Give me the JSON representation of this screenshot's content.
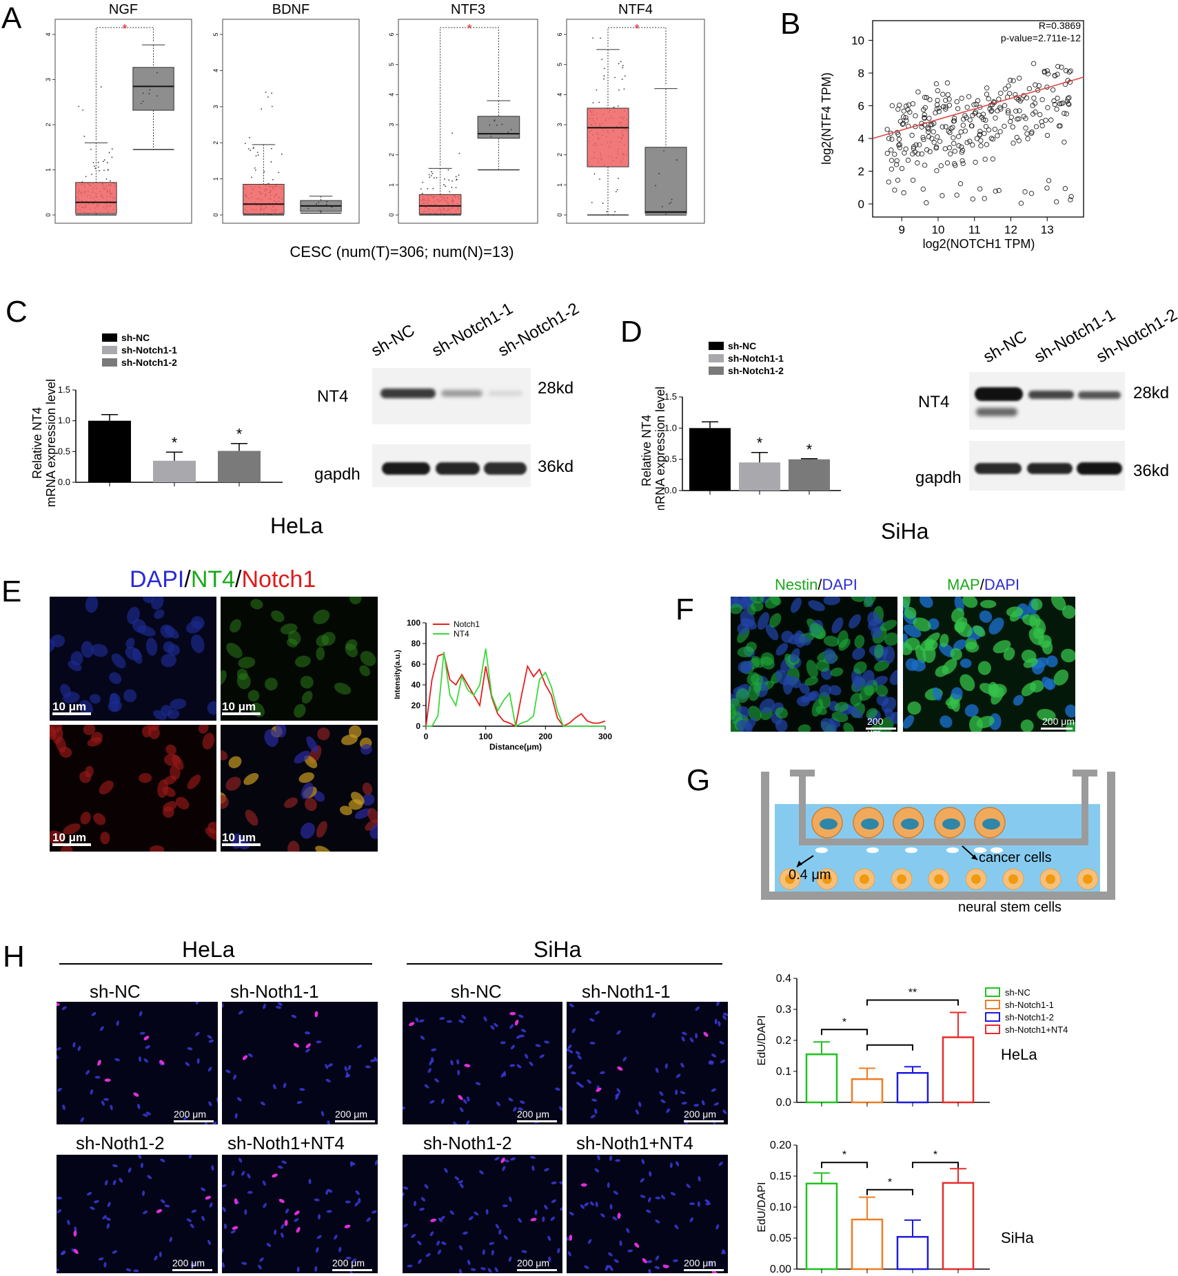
{
  "panels": {
    "A": "A",
    "B": "B",
    "C": "C",
    "D": "D",
    "E": "E",
    "F": "F",
    "G": "G",
    "H": "H"
  },
  "panelA": {
    "caption": "CESC (num(T)=306; num(N)=13)",
    "star": "*",
    "plots": [
      {
        "title": "NGF",
        "ymax": 4,
        "ticks": [
          "0",
          "1",
          "2",
          "3",
          "4"
        ],
        "tumor": {
          "min": 0,
          "q1": 0.03,
          "med": 0.28,
          "q3": 0.72,
          "max": 1.6
        },
        "normal": {
          "min": 1.45,
          "q1": 2.32,
          "med": 2.85,
          "q3": 3.27,
          "max": 3.77
        },
        "sig": true
      },
      {
        "title": "BDNF",
        "ymax": 5,
        "ticks": [
          "0",
          "1",
          "2",
          "3",
          "4",
          "5"
        ],
        "tumor": {
          "min": 0,
          "q1": 0.03,
          "med": 0.3,
          "q3": 0.85,
          "max": 1.95
        },
        "normal": {
          "min": 0.05,
          "q1": 0.1,
          "med": 0.25,
          "q3": 0.4,
          "max": 0.52
        },
        "sig": false
      },
      {
        "title": "NTF3",
        "ymax": 6,
        "ticks": [
          "0",
          "1",
          "2",
          "3",
          "4",
          "5",
          "6"
        ],
        "tumor": {
          "min": 0,
          "q1": 0.03,
          "med": 0.3,
          "q3": 0.68,
          "max": 1.55
        },
        "normal": {
          "min": 1.5,
          "q1": 2.55,
          "med": 2.7,
          "q3": 3.28,
          "max": 3.8
        },
        "sig": true
      },
      {
        "title": "NTF4",
        "ymax": 6,
        "ticks": [
          "0",
          "1",
          "2",
          "3",
          "4",
          "5",
          "6"
        ],
        "tumor": {
          "min": 0,
          "q1": 1.6,
          "med": 2.9,
          "q3": 3.55,
          "max": 5.5
        },
        "normal": {
          "min": 0,
          "q1": 0.05,
          "med": 0.1,
          "q3": 2.25,
          "max": 4.2
        },
        "sig": true
      }
    ]
  },
  "panelB": {
    "xlabel": "log2(NOTCH1 TPM)",
    "ylabel": "log2(NTF4 TPM)",
    "r": "R=0.3869",
    "p": "p-value=2.711e-12",
    "xticks": [
      "9",
      "10",
      "11",
      "12",
      "13"
    ],
    "yticks": [
      "0",
      "2",
      "4",
      "6",
      "8",
      "10"
    ]
  },
  "panelC": {
    "cell": "HeLa",
    "ylabel1": "Relative  NT4",
    "ylabel2": "mRNA expression level",
    "legend": [
      "sh-NC",
      "sh-Notch1-1",
      "sh-Notch1-2"
    ],
    "yticks": [
      "0.0",
      "0.5",
      "1.0",
      "1.5"
    ],
    "star": "*",
    "blot_cols": [
      "sh-NC",
      "sh-Notch1-1",
      "sh-Notch1-2"
    ],
    "nt4": "NT4",
    "gapdh": "gapdh",
    "kd28": "28kd",
    "kd36": "36kd"
  },
  "panelD": {
    "cell": "SiHa",
    "ylabel1": "Relative  NT4",
    "ylabel2": "mRNA expression level",
    "legend": [
      "sh-NC",
      "sh-Notch1-1",
      "sh-Notch1-2"
    ],
    "yticks": [
      "0.0",
      "0.5",
      "1.0",
      "1.5"
    ],
    "star": "*",
    "blot_cols": [
      "sh-NC",
      "sh-Notch1-1",
      "sh-Notch1-2"
    ],
    "nt4": "NT4",
    "gapdh": "gapdh",
    "kd28": "28kd",
    "kd36": "36kd"
  },
  "panelE": {
    "title_dapi": "DAPI",
    "slash": "/",
    "title_nt4": "NT4",
    "title_notch": "Notch1",
    "scale": "10 μm",
    "xlabel": "Distance(μm)",
    "ylabel": "Intensity(a.u.)",
    "xticks": [
      "0",
      "100",
      "200",
      "300"
    ],
    "yticks": [
      "0",
      "20",
      "40",
      "60",
      "80",
      "100"
    ]
  },
  "panelF": {
    "nestin": "Nestin",
    "map": "MAP",
    "dapi": "DAPI",
    "slash": "/",
    "scale": "200 μm"
  },
  "panelG": {
    "pore": "0.4 μm",
    "cancer": "cancer cells",
    "nsc": "neural stem cells"
  },
  "panelH": {
    "hela": "HeLa",
    "siha": "SiHa",
    "conds": [
      "sh-NC",
      "sh-Noth1-1",
      "sh-Noth1-2",
      "sh-Noth1+NT4"
    ],
    "scale": "200 μm",
    "ylabel": "EdU/DAPI",
    "legend": [
      "sh-NC",
      "sh-Notch1-1",
      "sh-Notch1-2",
      "sh-Notch1+NT4"
    ],
    "helaTicks": [
      "0.0",
      "0.1",
      "0.2",
      "0.3",
      "0.4"
    ],
    "sihaTicks": [
      "0.00",
      "0.05",
      "0.10",
      "0.15",
      "0.20"
    ],
    "star": "*",
    "star2": "**"
  },
  "chart_data": [
    {
      "type": "bar",
      "title": "",
      "categories": [
        "sh-NC",
        "sh-Notch1-1",
        "sh-Notch1-2"
      ],
      "values": [
        1.0,
        0.35,
        0.51
      ],
      "errors": [
        0.1,
        0.14,
        0.12
      ],
      "ylim": [
        0,
        1.5
      ],
      "cell": "HeLa"
    },
    {
      "type": "bar",
      "title": "",
      "categories": [
        "sh-NC",
        "sh-Notch1-1",
        "sh-Notch1-2"
      ],
      "values": [
        1.0,
        0.45,
        0.5
      ],
      "errors": [
        0.1,
        0.16,
        0.01
      ],
      "ylim": [
        0,
        1.5
      ],
      "cell": "SiHa"
    },
    {
      "type": "bar",
      "title": "",
      "categories": [
        "sh-NC",
        "sh-Notch1-1",
        "sh-Notch1-2",
        "sh-Notch1+NT4"
      ],
      "values": [
        0.155,
        0.075,
        0.095,
        0.21
      ],
      "errors": [
        0.04,
        0.035,
        0.02,
        0.08
      ],
      "ylim": [
        0,
        0.4
      ],
      "cell": "HeLa"
    },
    {
      "type": "bar",
      "title": "",
      "categories": [
        "sh-NC",
        "sh-Notch1-1",
        "sh-Notch1-2",
        "sh-Notch1+NT4"
      ],
      "values": [
        0.138,
        0.08,
        0.052,
        0.139
      ],
      "errors": [
        0.017,
        0.036,
        0.027,
        0.023
      ],
      "ylim": [
        0,
        0.2
      ],
      "cell": "SiHa"
    },
    {
      "type": "line",
      "x": [
        0,
        10,
        20,
        30,
        40,
        50,
        60,
        70,
        80,
        90,
        100,
        110,
        120,
        130,
        140,
        150,
        160,
        170,
        180,
        190,
        200,
        210,
        220,
        230,
        240,
        250,
        260,
        270,
        280,
        290,
        300
      ],
      "series": [
        {
          "name": "Notch1",
          "values": [
            0,
            45,
            68,
            70,
            45,
            40,
            50,
            40,
            30,
            20,
            58,
            28,
            12,
            5,
            3,
            0,
            30,
            58,
            48,
            55,
            40,
            30,
            8,
            0,
            3,
            8,
            12,
            5,
            3,
            3,
            5
          ]
        },
        {
          "name": "NT4",
          "values": [
            0,
            0,
            10,
            72,
            30,
            20,
            48,
            35,
            30,
            40,
            75,
            30,
            15,
            25,
            32,
            0,
            3,
            5,
            10,
            45,
            52,
            38,
            15,
            0,
            0,
            0,
            0,
            0,
            0,
            0,
            0
          ]
        }
      ],
      "xlim": [
        0,
        300
      ],
      "ylim": [
        0,
        100
      ]
    }
  ]
}
